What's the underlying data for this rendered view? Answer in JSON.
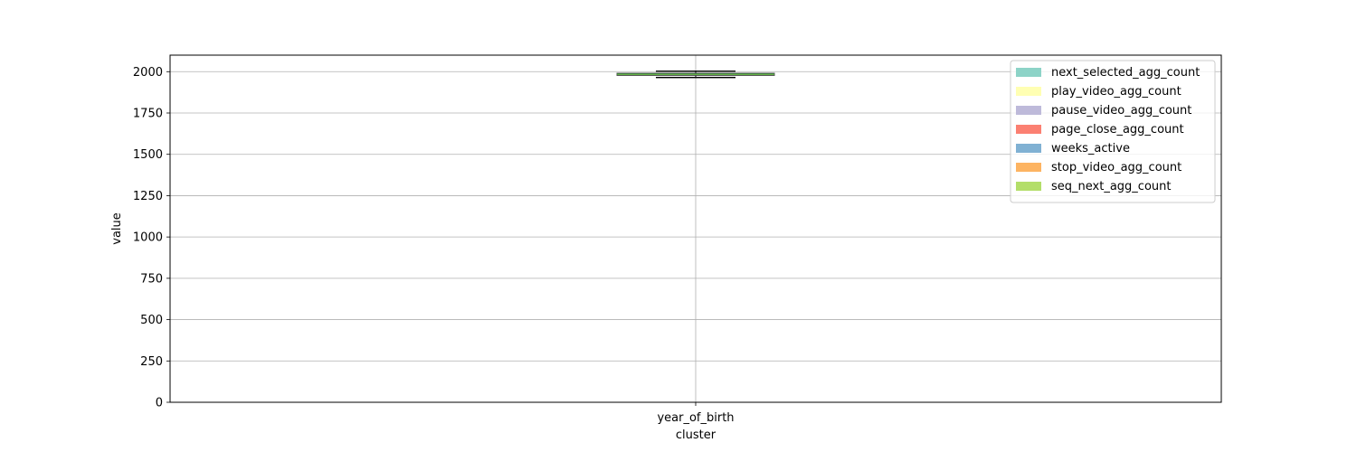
{
  "chart_data": {
    "type": "box",
    "title": "",
    "xlabel": "cluster",
    "ylabel": "value",
    "categories": [
      "year_of_birth"
    ],
    "ylim": [
      0,
      2100
    ],
    "yticks": [
      0,
      250,
      500,
      750,
      1000,
      1250,
      1500,
      1750,
      2000
    ],
    "grid": true,
    "legend_position": "upper-right",
    "series": [
      {
        "name": "next_selected_agg_count",
        "color": "#8dd3c7",
        "whisker_low": 1965,
        "q1": 1978,
        "median": 1985,
        "q3": 1990,
        "whisker_high": 2002
      },
      {
        "name": "play_video_agg_count",
        "color": "#ffffb3",
        "whisker_low": 1965,
        "q1": 1978,
        "median": 1985,
        "q3": 1990,
        "whisker_high": 2002
      },
      {
        "name": "pause_video_agg_count",
        "color": "#bebada",
        "whisker_low": 1965,
        "q1": 1978,
        "median": 1985,
        "q3": 1990,
        "whisker_high": 2002
      },
      {
        "name": "page_close_agg_count",
        "color": "#fb8072",
        "whisker_low": 1965,
        "q1": 1978,
        "median": 1985,
        "q3": 1990,
        "whisker_high": 2002
      },
      {
        "name": "weeks_active",
        "color": "#80b1d3",
        "whisker_low": 1965,
        "q1": 1978,
        "median": 1985,
        "q3": 1990,
        "whisker_high": 2002
      },
      {
        "name": "stop_video_agg_count",
        "color": "#fdb462",
        "whisker_low": 1965,
        "q1": 1978,
        "median": 1985,
        "q3": 1990,
        "whisker_high": 2002
      },
      {
        "name": "seq_next_agg_count",
        "color": "#b3de69",
        "whisker_low": 1965,
        "q1": 1978,
        "median": 1985,
        "q3": 1990,
        "whisker_high": 2002
      }
    ]
  }
}
